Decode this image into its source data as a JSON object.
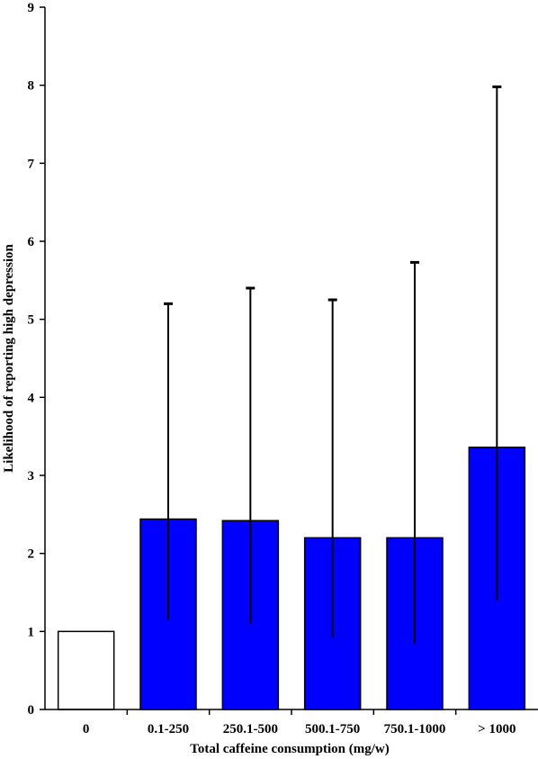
{
  "chart_data": {
    "type": "bar",
    "title": "",
    "xlabel": "Total caffeine consumption (mg/w)",
    "ylabel": "Likelihood of reporting high depression",
    "categories": [
      "0",
      "0.1-250",
      "250.1-500",
      "500.1-750",
      "750.1-1000",
      "> 1000"
    ],
    "values": [
      1.0,
      2.44,
      2.42,
      2.2,
      2.2,
      3.36
    ],
    "error_lower": [
      null,
      1.15,
      1.1,
      0.92,
      0.85,
      1.4
    ],
    "error_upper": [
      null,
      5.2,
      5.4,
      5.25,
      5.73,
      7.98
    ],
    "bar_colors": [
      "#ffffff",
      "#0000ff",
      "#0000ff",
      "#0000ff",
      "#0000ff",
      "#0000ff"
    ],
    "ylim": [
      0,
      9
    ],
    "yticks": [
      "0",
      "1",
      "2",
      "3",
      "4",
      "5",
      "6",
      "7",
      "8",
      "9"
    ],
    "grid": false,
    "legend": "none"
  }
}
